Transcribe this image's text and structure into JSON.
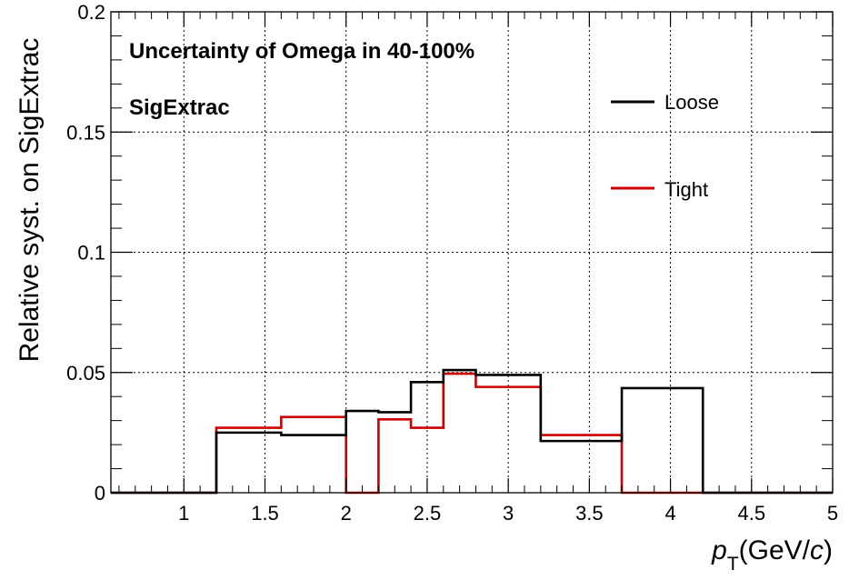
{
  "chart_data": {
    "type": "line",
    "style": "step-histogram",
    "title": "Uncertainty of Omega in 40-100%",
    "subtitle": "SigExtrac",
    "xlabel_prefix": "p",
    "xlabel_sub": "T",
    "xlabel_suffix": "(GeV/",
    "xlabel_c": "c",
    "xlabel_close": ")",
    "ylabel": "Relative syst. on SigExtrac",
    "xlim": [
      0.55,
      5.0
    ],
    "ylim": [
      0,
      0.2
    ],
    "xticks": [
      1,
      1.5,
      2,
      2.5,
      3,
      3.5,
      4,
      4.5,
      5
    ],
    "xtick_labels": [
      "1",
      "1.5",
      "2",
      "2.5",
      "3",
      "3.5",
      "4",
      "4.5",
      "5"
    ],
    "yticks": [
      0,
      0.05,
      0.1,
      0.15,
      0.2
    ],
    "ytick_labels": [
      "0",
      "0.05",
      "0.1",
      "0.15",
      "0.2"
    ],
    "grid": true,
    "legend_position": "top-right",
    "bin_edges": [
      0.55,
      1.2,
      1.6,
      2.0,
      2.2,
      2.4,
      2.6,
      2.8,
      3.2,
      3.7,
      4.2,
      5.0
    ],
    "series": [
      {
        "name": "Loose",
        "color": "#000000",
        "values": [
          0,
          0.025,
          0.024,
          0.034,
          0.0335,
          0.046,
          0.051,
          0.049,
          0.0215,
          0.0435,
          0
        ]
      },
      {
        "name": "Tight",
        "color": "#cc0000",
        "values": [
          0,
          0.027,
          0.0315,
          0,
          0.0305,
          0.027,
          0.0495,
          0.044,
          0.024,
          0,
          0
        ]
      }
    ]
  }
}
